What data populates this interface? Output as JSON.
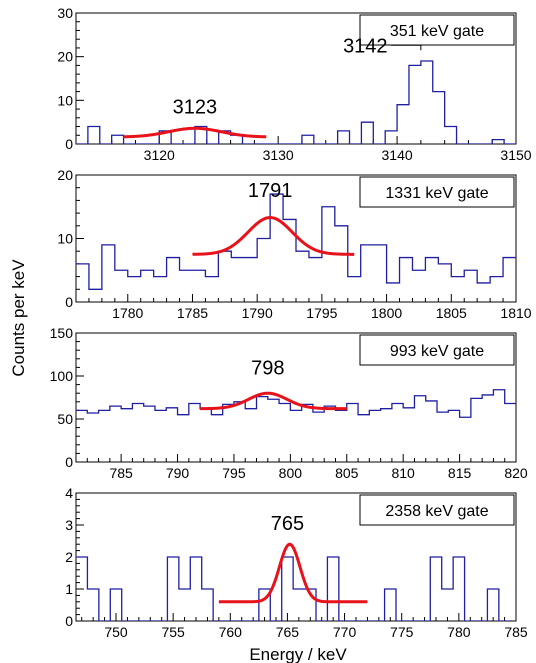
{
  "figure": {
    "ylabel": "Counts per keV",
    "xlabel": "Energy / keV"
  },
  "colors": {
    "histogram": "#1f1fa0",
    "fit": "#e8121a",
    "axis": "#000000"
  },
  "chart_data": [
    {
      "type": "histogram",
      "gate_label": "351 keV gate",
      "xlim": [
        3113,
        3150
      ],
      "ylim": [
        0,
        30
      ],
      "xticks": [
        3120,
        3130,
        3140,
        3150
      ],
      "yticks": [
        0,
        10,
        20,
        30
      ],
      "bin_width": 1,
      "bin_start": 3113,
      "counts": [
        0,
        4,
        0,
        2,
        0,
        0,
        0,
        3,
        0,
        0,
        4,
        0,
        3,
        2,
        0,
        0,
        0,
        0,
        0,
        2,
        0,
        0,
        3,
        0,
        5,
        0,
        3,
        9,
        18,
        19,
        12,
        4,
        0,
        0,
        0,
        1,
        0
      ],
      "fit": {
        "mu": 3123,
        "sigma": 2.2,
        "amp": 2.0,
        "bg": 1.6,
        "range": [
          3117,
          3129
        ]
      },
      "peaks": [
        {
          "label": "3123",
          "x": 3123,
          "y": 7
        },
        {
          "label": "3142",
          "x": 3139.2,
          "y": 21,
          "bracket": [
            3139.5,
            3142
          ]
        }
      ]
    },
    {
      "type": "histogram",
      "gate_label": "1331 keV gate",
      "xlim": [
        1776,
        1810
      ],
      "ylim": [
        0,
        20
      ],
      "xticks": [
        1780,
        1785,
        1790,
        1795,
        1800,
        1805,
        1810
      ],
      "yticks": [
        0,
        10,
        20
      ],
      "bin_width": 1,
      "bin_start": 1776,
      "counts": [
        6,
        2,
        9,
        5,
        4,
        5,
        4,
        7,
        5,
        5,
        4,
        8,
        7,
        7,
        10,
        17,
        13,
        8,
        7,
        15,
        12,
        4,
        9,
        9,
        3,
        7,
        5,
        7,
        6,
        4,
        5,
        3,
        4,
        7
      ],
      "fit": {
        "mu": 1791,
        "sigma": 1.7,
        "amp": 5.8,
        "bg": 7.5,
        "range": [
          1785,
          1797.5
        ]
      },
      "peaks": [
        {
          "label": "1791",
          "x": 1791,
          "y": 16.5
        }
      ]
    },
    {
      "type": "histogram",
      "gate_label": "993 keV gate",
      "xlim": [
        781,
        820
      ],
      "ylim": [
        0,
        150
      ],
      "xticks": [
        785,
        790,
        795,
        800,
        805,
        810,
        815,
        820
      ],
      "yticks": [
        0,
        50,
        100,
        150
      ],
      "bin_width": 1,
      "bin_start": 781,
      "counts": [
        60,
        57,
        60,
        65,
        62,
        68,
        65,
        60,
        63,
        55,
        68,
        62,
        55,
        67,
        70,
        62,
        76,
        73,
        68,
        60,
        67,
        58,
        65,
        60,
        68,
        55,
        60,
        62,
        68,
        63,
        77,
        71,
        58,
        60,
        52,
        74,
        78,
        84,
        68
      ],
      "fit": {
        "mu": 798,
        "sigma": 1.7,
        "amp": 18,
        "bg": 62,
        "range": [
          792,
          805
        ]
      },
      "peaks": [
        {
          "label": "798",
          "x": 798,
          "y": 102
        }
      ]
    },
    {
      "type": "histogram",
      "gate_label": "2358 keV gate",
      "xlim": [
        746.5,
        785
      ],
      "ylim": [
        0,
        4
      ],
      "xticks": [
        750,
        755,
        760,
        765,
        770,
        775,
        780,
        785
      ],
      "yticks": [
        0,
        1,
        2,
        3,
        4
      ],
      "bin_width": 1,
      "bin_start": 746.5,
      "counts": [
        2,
        1,
        0,
        1,
        0,
        0,
        0,
        0,
        2,
        1,
        2,
        1,
        0,
        0,
        0,
        0,
        1,
        0,
        2,
        1,
        1,
        0,
        2,
        0,
        0,
        0,
        0,
        1,
        0,
        0,
        0,
        2,
        1,
        2,
        0,
        0,
        1,
        0
      ],
      "fit": {
        "mu": 765.2,
        "sigma": 0.9,
        "amp": 1.8,
        "bg": 0.6,
        "range": [
          759,
          772
        ]
      },
      "peaks": [
        {
          "label": "765",
          "x": 765,
          "y": 2.85
        }
      ]
    }
  ]
}
